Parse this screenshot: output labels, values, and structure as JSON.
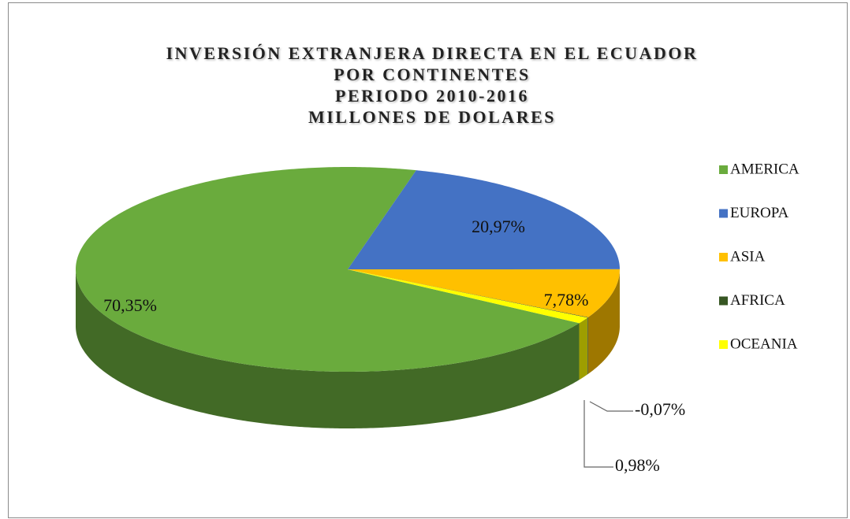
{
  "chart_data": {
    "type": "pie",
    "title": [
      "INVERSIÓN EXTRANJERA DIRECTA EN EL ECUADOR",
      "POR CONTINENTES",
      "PERIODO 2010-2016",
      "MILLONES DE DOLARES"
    ],
    "categories": [
      "AMERICA",
      "EUROPA",
      "ASIA",
      "AFRICA",
      "OCEANIA"
    ],
    "values": [
      70.35,
      20.97,
      7.78,
      -0.07,
      0.98
    ],
    "value_labels": [
      "70,35%",
      "20,97%",
      "7,78%",
      "-0,07%",
      "0,98%"
    ],
    "colors": [
      "#6aab3d",
      "#4472c4",
      "#ffc000",
      "#375623",
      "#ffff00"
    ],
    "legend": "right"
  }
}
